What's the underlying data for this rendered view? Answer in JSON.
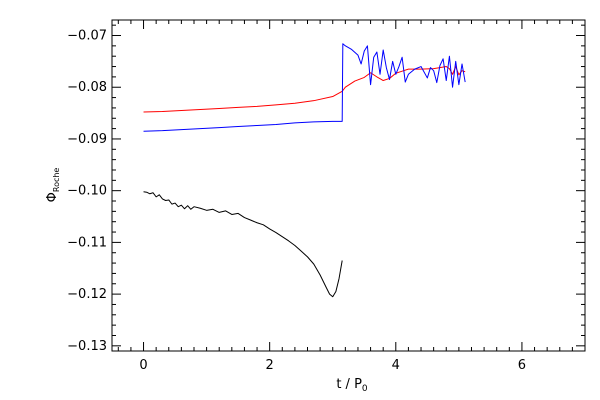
{
  "chart_data": {
    "type": "line",
    "xlabel": "t / P",
    "xlabel_sub": "0",
    "ylabel": "Φ",
    "ylabel_sub": "Roche",
    "xlim": [
      -0.5,
      7
    ],
    "ylim": [
      -0.131,
      -0.067
    ],
    "x_ticks": [
      0,
      2,
      4,
      6
    ],
    "x_minor_step": 0.2,
    "y_ticks": [
      -0.13,
      -0.12,
      -0.11,
      -0.1,
      -0.09,
      -0.08,
      -0.07
    ],
    "y_tick_labels": [
      "−0.13",
      "−0.12",
      "−0.11",
      "−0.10",
      "−0.09",
      "−0.08",
      "−0.07"
    ],
    "y_minor_step": 0.002,
    "grid": false,
    "series": [
      {
        "color": "#000000",
        "x": [
          0,
          0.05,
          0.1,
          0.15,
          0.2,
          0.25,
          0.3,
          0.35,
          0.4,
          0.45,
          0.5,
          0.55,
          0.6,
          0.65,
          0.7,
          0.75,
          0.8,
          0.9,
          1.0,
          1.1,
          1.2,
          1.3,
          1.4,
          1.5,
          1.6,
          1.7,
          1.8,
          1.9,
          2.0,
          2.1,
          2.2,
          2.3,
          2.4,
          2.5,
          2.6,
          2.7,
          2.8,
          2.9,
          2.95,
          3.0,
          3.05,
          3.1,
          3.15
        ],
        "values": [
          -0.1002,
          -0.1003,
          -0.1006,
          -0.1004,
          -0.1012,
          -0.1008,
          -0.1016,
          -0.1019,
          -0.1018,
          -0.1026,
          -0.1024,
          -0.1031,
          -0.1028,
          -0.1035,
          -0.1029,
          -0.1036,
          -0.1031,
          -0.1034,
          -0.1038,
          -0.1036,
          -0.1042,
          -0.1039,
          -0.1046,
          -0.1044,
          -0.1052,
          -0.1057,
          -0.1062,
          -0.1066,
          -0.1074,
          -0.1081,
          -0.1089,
          -0.1097,
          -0.1106,
          -0.1117,
          -0.1128,
          -0.1142,
          -0.1163,
          -0.1188,
          -0.12,
          -0.1205,
          -0.1195,
          -0.117,
          -0.1135
        ]
      },
      {
        "color": "#ff0000",
        "x": [
          0,
          0.3,
          0.6,
          0.9,
          1.2,
          1.5,
          1.8,
          2.1,
          2.4,
          2.7,
          3.0,
          3.15,
          3.2,
          3.35,
          3.5,
          3.6,
          3.7,
          3.8,
          3.9,
          4.0,
          4.1,
          4.2,
          4.4,
          4.6,
          4.7,
          4.8,
          4.85,
          4.9,
          4.95,
          5.0,
          5.05,
          5.1
        ],
        "values": [
          -0.0848,
          -0.0847,
          -0.0845,
          -0.0843,
          -0.0841,
          -0.0839,
          -0.0837,
          -0.0834,
          -0.0831,
          -0.0826,
          -0.0818,
          -0.0808,
          -0.08,
          -0.0788,
          -0.0781,
          -0.0772,
          -0.078,
          -0.0787,
          -0.0783,
          -0.0773,
          -0.0769,
          -0.0765,
          -0.0765,
          -0.0764,
          -0.0762,
          -0.076,
          -0.0764,
          -0.0775,
          -0.076,
          -0.0776,
          -0.0768,
          -0.077
        ]
      },
      {
        "color": "#0000ff",
        "x": [
          0,
          0.3,
          0.6,
          0.9,
          1.2,
          1.5,
          1.8,
          2.1,
          2.4,
          2.7,
          3.0,
          3.1,
          3.15,
          3.16,
          3.2,
          3.3,
          3.4,
          3.45,
          3.5,
          3.55,
          3.6,
          3.65,
          3.7,
          3.75,
          3.8,
          3.85,
          3.9,
          3.95,
          4.0,
          4.05,
          4.1,
          4.15,
          4.2,
          4.3,
          4.4,
          4.5,
          4.55,
          4.6,
          4.65,
          4.7,
          4.75,
          4.8,
          4.85,
          4.9,
          4.95,
          5.0,
          5.05,
          5.1
        ],
        "values": [
          -0.0885,
          -0.0884,
          -0.0882,
          -0.088,
          -0.0878,
          -0.0876,
          -0.0874,
          -0.0872,
          -0.0869,
          -0.0867,
          -0.0866,
          -0.0866,
          -0.0866,
          -0.0716,
          -0.072,
          -0.0727,
          -0.0738,
          -0.0755,
          -0.073,
          -0.072,
          -0.0795,
          -0.0742,
          -0.0732,
          -0.0775,
          -0.0728,
          -0.0762,
          -0.0785,
          -0.075,
          -0.0775,
          -0.076,
          -0.0742,
          -0.079,
          -0.0775,
          -0.0765,
          -0.076,
          -0.0782,
          -0.0762,
          -0.0768,
          -0.0791,
          -0.0758,
          -0.0745,
          -0.0787,
          -0.074,
          -0.08,
          -0.075,
          -0.0795,
          -0.0755,
          -0.079
        ]
      }
    ]
  }
}
